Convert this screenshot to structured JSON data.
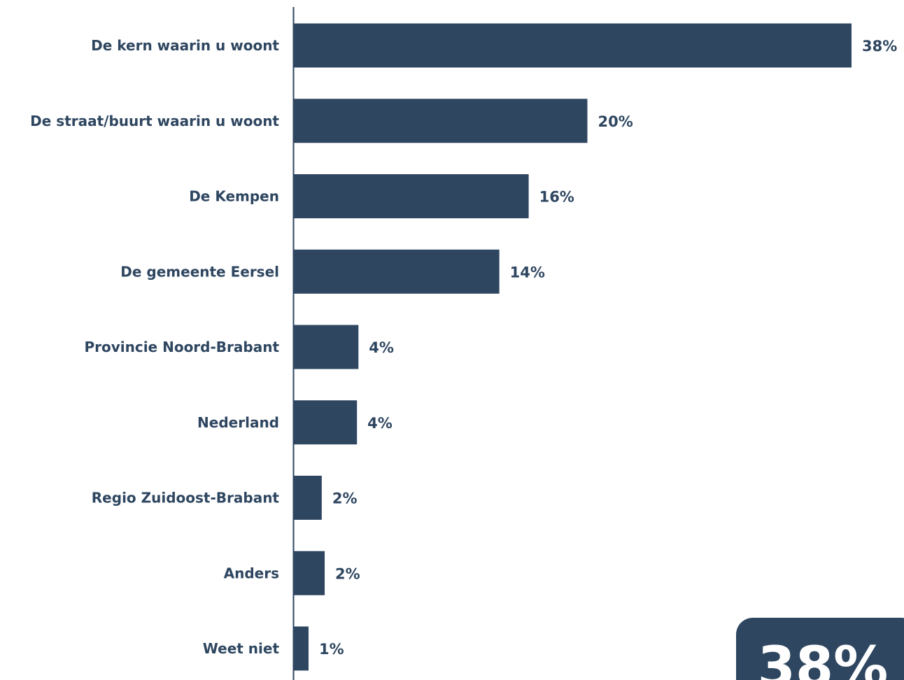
{
  "colors": {
    "bar": "#2e4660",
    "text": "#2e4660",
    "axis": "#2e4660",
    "callout_bg": "#2e4660",
    "callout_text": "#ffffff"
  },
  "chart_data": {
    "type": "bar",
    "orientation": "horizontal",
    "categories": [
      "De kern waarin u woont",
      "De straat/buurt waarin u woont",
      "De Kempen",
      "De gemeente Eersel",
      "Provincie Noord-Brabant",
      "Nederland",
      "Regio Zuidoost-Brabant",
      "Anders",
      "Weet niet"
    ],
    "values": [
      38,
      20,
      16,
      14,
      4.4,
      4.3,
      1.9,
      2.1,
      1.0
    ],
    "value_labels": [
      "38%",
      "20%",
      "16%",
      "14%",
      "4%",
      "4%",
      "2%",
      "2%",
      "1%"
    ],
    "unit": "%",
    "xlim": [
      0,
      38
    ],
    "grid": false,
    "legend": "none"
  },
  "callout": {
    "text": "38%"
  }
}
